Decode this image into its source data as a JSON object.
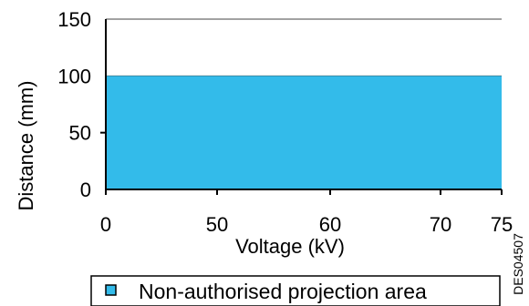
{
  "chart_data": {
    "type": "area",
    "title": "",
    "xlabel": "Voltage (kV)",
    "ylabel": "Distance (mm)",
    "x_ticks": [
      "0",
      "50",
      "60",
      "70",
      "75"
    ],
    "y_ticks": [
      "0",
      "50",
      "100",
      "150"
    ],
    "ylim": [
      0,
      150
    ],
    "series": [
      {
        "name": "Non-authorised projection area",
        "x_start": 0,
        "x_end": 75,
        "y": 100,
        "color": "#33bbea"
      }
    ],
    "gridlines": [
      100,
      150
    ],
    "legend_position": "bottom",
    "code": "DES04507"
  }
}
